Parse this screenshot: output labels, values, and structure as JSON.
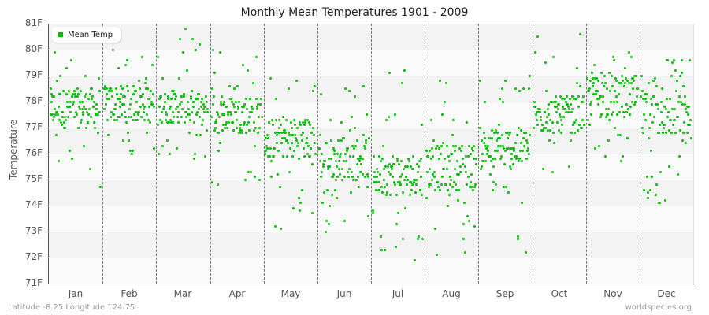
{
  "chart_data": {
    "type": "scatter",
    "title": "Monthly Mean Temperatures 1901 - 2009",
    "xlabel": "",
    "ylabel": "Temperature",
    "ylim": [
      71,
      81
    ],
    "y_ticks": [
      "71F",
      "72F",
      "73F",
      "74F",
      "75F",
      "76F",
      "77F",
      "78F",
      "79F",
      "80F",
      "81F"
    ],
    "categories": [
      "Jan",
      "Feb",
      "Mar",
      "Apr",
      "May",
      "Jun",
      "Jul",
      "Aug",
      "Sep",
      "Oct",
      "Nov",
      "Dec"
    ],
    "legend": [
      {
        "name": "Mean Temp",
        "color": "#00bb00"
      }
    ],
    "legend_position": "top-left",
    "grid": "alternating horizontal bands, dashed vertical month separators",
    "series": [
      {
        "name": "Mean Temp",
        "month_summary": [
          {
            "month": "Jan",
            "min": 74.6,
            "max": 80.1,
            "typical": [
              77.0,
              78.5
            ]
          },
          {
            "month": "Feb",
            "min": 75.2,
            "max": 80.3,
            "typical": [
              77.2,
              78.6
            ]
          },
          {
            "month": "Mar",
            "min": 75.8,
            "max": 80.8,
            "typical": [
              77.2,
              78.4
            ]
          },
          {
            "month": "Apr",
            "min": 74.3,
            "max": 80.6,
            "typical": [
              76.8,
              78.2
            ]
          },
          {
            "month": "May",
            "min": 72.8,
            "max": 79.7,
            "typical": [
              75.8,
              77.4
            ]
          },
          {
            "month": "Jun",
            "min": 72.8,
            "max": 78.6,
            "typical": [
              75.0,
              76.6
            ]
          },
          {
            "month": "Jul",
            "min": 71.9,
            "max": 79.5,
            "typical": [
              74.4,
              76.0
            ]
          },
          {
            "month": "Aug",
            "min": 71.9,
            "max": 78.8,
            "typical": [
              74.6,
              76.4
            ]
          },
          {
            "month": "Sep",
            "min": 71.9,
            "max": 79.1,
            "typical": [
              75.4,
              77.0
            ]
          },
          {
            "month": "Oct",
            "min": 75.2,
            "max": 80.8,
            "typical": [
              76.8,
              78.2
            ]
          },
          {
            "month": "Nov",
            "min": 75.7,
            "max": 79.9,
            "typical": [
              77.4,
              79.0
            ]
          },
          {
            "month": "Dec",
            "min": 73.6,
            "max": 79.7,
            "typical": [
              76.6,
              78.4
            ]
          }
        ]
      }
    ]
  },
  "title": "Monthly Mean Temperatures 1901 - 2009",
  "y_axis_title": "Temperature",
  "legend_label": "Mean Temp",
  "footer": {
    "location": "Latitude -8.25 Longitude 124.75",
    "source": "worldspecies.org"
  }
}
